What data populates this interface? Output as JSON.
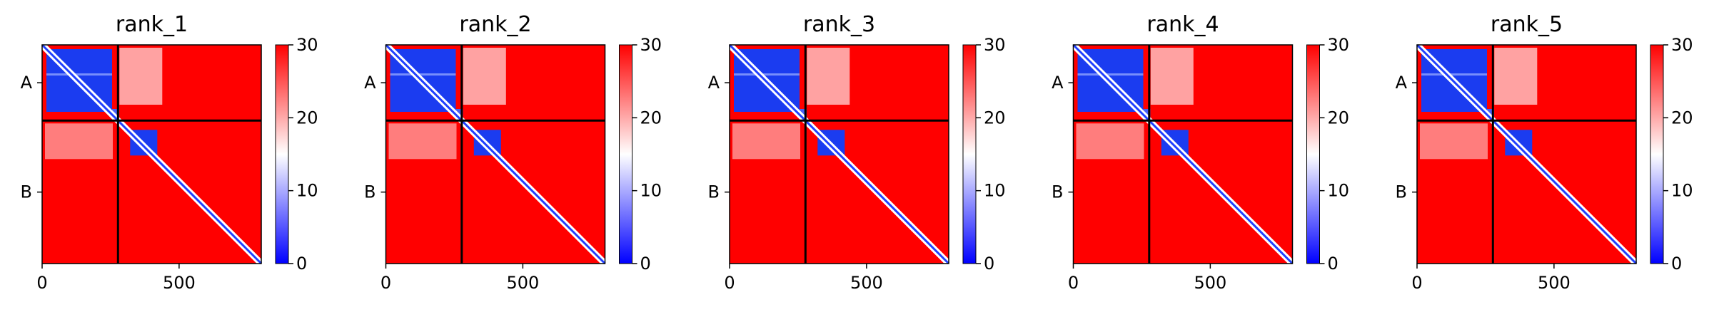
{
  "chart_data": [
    {
      "type": "heatmap",
      "title": "rank_1",
      "xticks": [
        "0",
        "500"
      ],
      "yticks": [
        "A",
        "B"
      ],
      "xlim": [
        0,
        800
      ],
      "chain_boundary": 277,
      "colorbar": {
        "ticks": [
          "0",
          "10",
          "20",
          "30"
        ],
        "range": [
          0,
          30
        ],
        "colormap": [
          "#0000ff",
          "#ffffff",
          "#ff0000"
        ]
      }
    },
    {
      "type": "heatmap",
      "title": "rank_2",
      "xticks": [
        "0",
        "500"
      ],
      "yticks": [
        "A",
        "B"
      ],
      "xlim": [
        0,
        800
      ],
      "chain_boundary": 277,
      "colorbar": {
        "ticks": [
          "0",
          "10",
          "20",
          "30"
        ],
        "range": [
          0,
          30
        ],
        "colormap": [
          "#0000ff",
          "#ffffff",
          "#ff0000"
        ]
      }
    },
    {
      "type": "heatmap",
      "title": "rank_3",
      "xticks": [
        "0",
        "500"
      ],
      "yticks": [
        "A",
        "B"
      ],
      "xlim": [
        0,
        800
      ],
      "chain_boundary": 277,
      "colorbar": {
        "ticks": [
          "0",
          "10",
          "20",
          "30"
        ],
        "range": [
          0,
          30
        ],
        "colormap": [
          "#0000ff",
          "#ffffff",
          "#ff0000"
        ]
      }
    },
    {
      "type": "heatmap",
      "title": "rank_4",
      "xticks": [
        "0",
        "500"
      ],
      "yticks": [
        "A",
        "B"
      ],
      "xlim": [
        0,
        800
      ],
      "chain_boundary": 277,
      "colorbar": {
        "ticks": [
          "0",
          "10",
          "20",
          "30"
        ],
        "range": [
          0,
          30
        ],
        "colormap": [
          "#0000ff",
          "#ffffff",
          "#ff0000"
        ]
      }
    },
    {
      "type": "heatmap",
      "title": "rank_5",
      "xticks": [
        "0",
        "500"
      ],
      "yticks": [
        "A",
        "B"
      ],
      "xlim": [
        0,
        800
      ],
      "chain_boundary": 277,
      "colorbar": {
        "ticks": [
          "0",
          "10",
          "20",
          "30"
        ],
        "range": [
          0,
          30
        ],
        "colormap": [
          "#0000ff",
          "#ffffff",
          "#ff0000"
        ]
      }
    }
  ]
}
